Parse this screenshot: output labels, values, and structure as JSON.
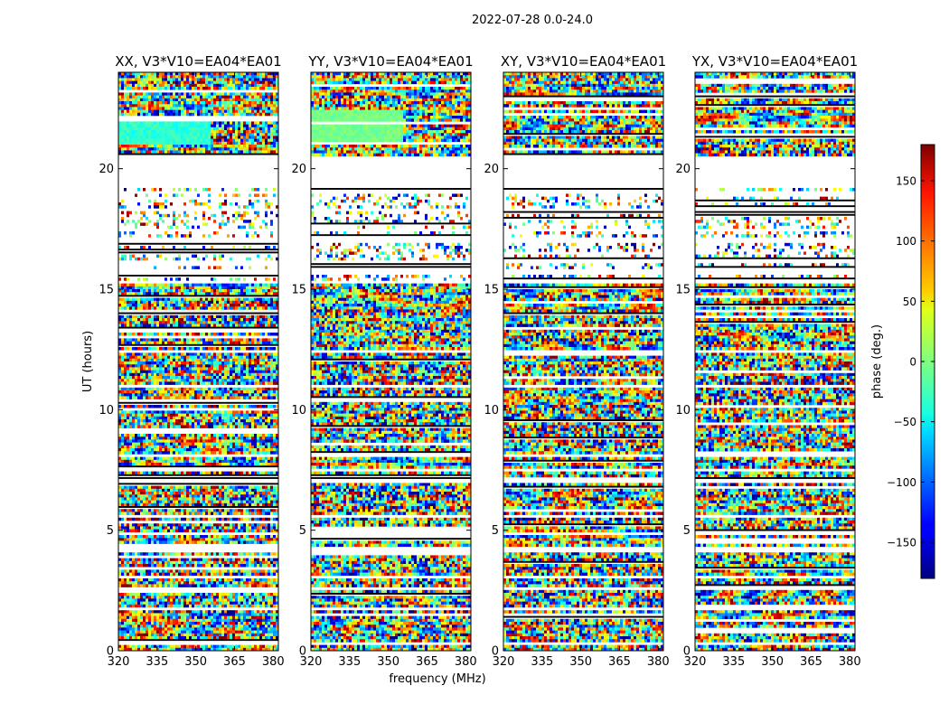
{
  "chart_data": {
    "type": "heatmap",
    "title": "2022-07-28 0.0-24.0",
    "xlabel": "frequency (MHz)",
    "ylabel": "UT (hours)",
    "xlim": [
      320,
      382
    ],
    "ylim": [
      0,
      24
    ],
    "xticks": [
      320,
      335,
      350,
      365,
      380
    ],
    "yticks": [
      0,
      5,
      10,
      15,
      20
    ],
    "xtick_labels": [
      "320",
      "335",
      "350",
      "365",
      "380"
    ],
    "ytick_labels": [
      "0",
      "5",
      "10",
      "15",
      "20"
    ],
    "panels": [
      {
        "title": "XX, V3*V10=EA04*EA01",
        "pol": "XX",
        "seed": 11
      },
      {
        "title": "YY, V3*V10=EA04*EA01",
        "pol": "YY",
        "seed": 23
      },
      {
        "title": "XY, V3*V10=EA04*EA01",
        "pol": "XY",
        "seed": 37
      },
      {
        "title": "YX, V3*V10=EA04*EA01",
        "pol": "YX",
        "seed": 51
      }
    ],
    "gap_hours": [
      [
        20.35,
        20.48
      ],
      [
        20.48,
        19.25
      ],
      [
        18.95,
        19.05
      ],
      [
        18.55,
        18.65
      ],
      [
        18.2,
        18.3
      ],
      [
        17.95,
        18.0
      ],
      [
        17.4,
        17.55
      ],
      [
        16.9,
        17.1
      ],
      [
        16.1,
        16.25
      ],
      [
        15.6,
        15.8
      ],
      [
        15.22,
        15.32
      ],
      [
        13.05,
        13.1
      ],
      [
        12.35,
        12.45
      ],
      [
        11.75,
        11.8
      ],
      [
        10.9,
        11.0
      ],
      [
        10.3,
        10.35
      ],
      [
        8.0,
        8.1
      ],
      [
        7.5,
        7.6
      ],
      [
        6.95,
        7.05
      ],
      [
        5.95,
        6.05
      ],
      [
        5.5,
        5.65
      ],
      [
        4.85,
        4.9
      ],
      [
        4.1,
        4.3
      ],
      [
        3.55,
        3.6
      ],
      [
        3.05,
        3.15
      ],
      [
        2.55,
        2.6
      ],
      [
        1.65,
        1.8
      ],
      [
        1.2,
        1.25
      ],
      [
        0.3,
        0.35
      ]
    ],
    "colorbar": {
      "label": "phase (deg.)",
      "range": [
        -180,
        180
      ],
      "ticks": [
        -150,
        -100,
        -50,
        0,
        50,
        100,
        150
      ],
      "tick_labels": [
        "−150",
        "−100",
        "−50",
        "0",
        "50",
        "100",
        "150"
      ],
      "colormap": "jet"
    }
  }
}
